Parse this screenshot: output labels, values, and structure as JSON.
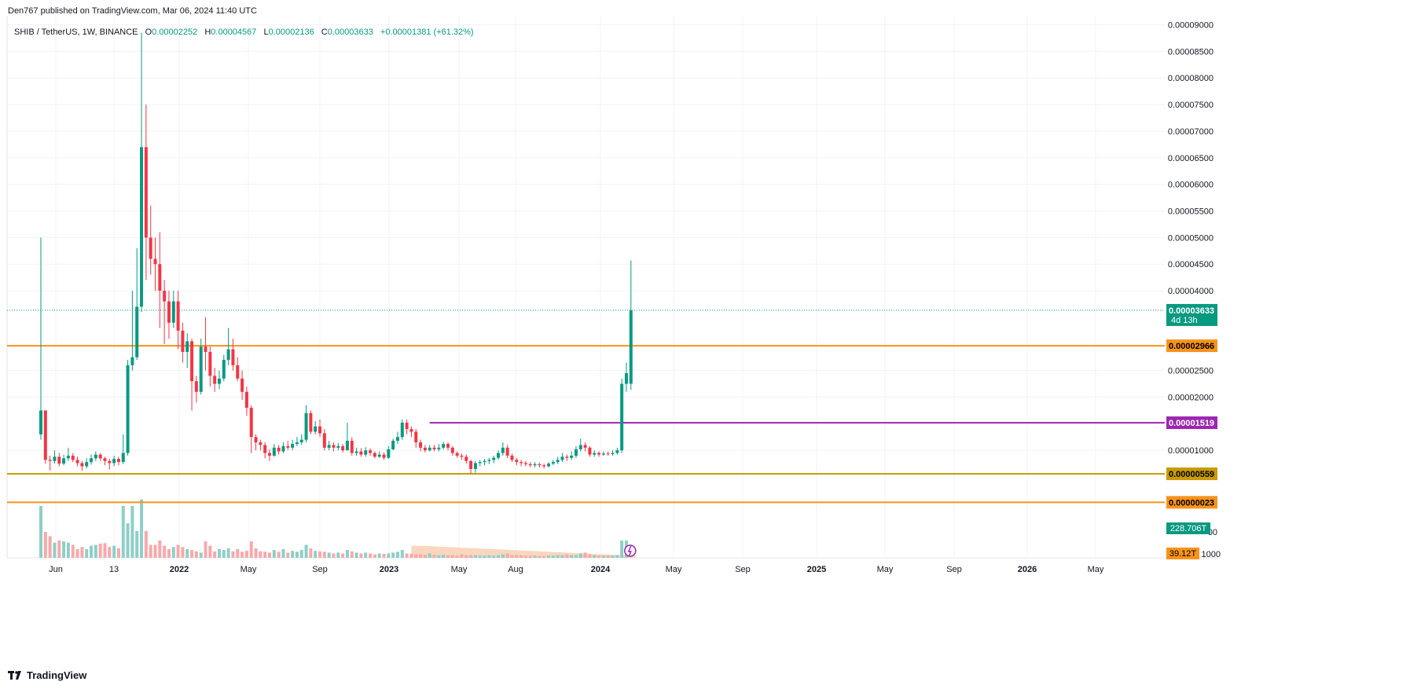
{
  "header": {
    "published": "Den767 published on TradingView.com, Mar 06, 2024 11:40 UTC"
  },
  "legend": {
    "symbol": "SHIB / TetherUS, 1W, BINANCE",
    "o_label": "O",
    "o_value": "0.00002252",
    "h_label": "H",
    "h_value": "0.00004567",
    "l_label": "L",
    "l_value": "0.00002136",
    "c_label": "C",
    "c_value": "0.00003633",
    "change": "+0.00001381 (+61.32%)"
  },
  "footer": {
    "brand": "TradingView"
  },
  "colors": {
    "up": "#089981",
    "down": "#F23645",
    "vol_up": "#8ECFC7",
    "vol_down": "#F7A9A9",
    "orange": "#F7931A",
    "purple": "#9C27B0",
    "grid": "#F0F3FA",
    "axis_text": "#131722",
    "price_tag": "#089981",
    "orange_tag": "#F7931A",
    "gold_tag": "#C79A00",
    "purple_tag": "#9C27B0",
    "vol_area": "#F7C9A9"
  },
  "chart_data": {
    "type": "candlestick",
    "title": "SHIB / TetherUS, 1W, BINANCE",
    "y_axis": {
      "ticks": [
        "0.00009000",
        "0.00008500",
        "0.00008000",
        "0.00007500",
        "0.00007000",
        "0.00006500",
        "0.00006000",
        "0.00005500",
        "0.00005000",
        "0.00004500",
        "0.00004000",
        "0.00002500",
        "0.00002000",
        "0.00001000"
      ],
      "tick_values": [
        9e-05,
        8.5e-05,
        8e-05,
        7.5e-05,
        7e-05,
        6.5e-05,
        6e-05,
        5.5e-05,
        5e-05,
        4.5e-05,
        4e-05,
        2.5e-05,
        2e-05,
        1e-05
      ],
      "ylim": [
        -1.02e-05,
        9.17e-05
      ],
      "volume_suffix_labels": [
        "00",
        "1000"
      ]
    },
    "x_axis": {
      "labels": [
        "Jun",
        "13",
        "2022",
        "May",
        "Sep",
        "2023",
        "May",
        "Aug",
        "2024",
        "May",
        "Sep",
        "2025",
        "May",
        "Sep",
        "2026",
        "May"
      ],
      "bold": [
        false,
        false,
        true,
        false,
        false,
        true,
        false,
        false,
        true,
        false,
        false,
        true,
        false,
        false,
        true,
        false
      ]
    },
    "horizontal_lines": [
      {
        "value": 2.966e-05,
        "label": "0.00002966",
        "color": "orange"
      },
      {
        "value": 5.59e-06,
        "label": "0.00000559",
        "color": "gold"
      },
      {
        "value": 2.3e-07,
        "label": "0.00000023",
        "color": "orange"
      }
    ],
    "segment_line": {
      "value": 1.519e-05,
      "label": "0.00001519",
      "from_week": 85,
      "color": "purple"
    },
    "last_price": {
      "value": 3.633e-05,
      "label": "0.00003633",
      "countdown": "4d 13h"
    },
    "volume_tags": {
      "volume": "228.706T",
      "ma": "39.12T"
    },
    "candles": [
      [
        1.3e-05,
        1.75e-05,
        5e-05,
        1.2e-05
      ],
      [
        1.75e-05,
        8.2e-06,
        1.75e-05,
        7.5e-06
      ],
      [
        8.2e-06,
        8e-06,
        9e-06,
        6.2e-06
      ],
      [
        8e-06,
        8.8e-06,
        1e-05,
        7.5e-06
      ],
      [
        8.8e-06,
        7.5e-06,
        9.5e-06,
        7e-06
      ],
      [
        7.5e-06,
        8.5e-06,
        9.2e-06,
        7.2e-06
      ],
      [
        8.5e-06,
        9e-06,
        1.05e-05,
        8e-06
      ],
      [
        9e-06,
        8.2e-06,
        9.5e-06,
        7.8e-06
      ],
      [
        8.2e-06,
        7.6e-06,
        8.8e-06,
        7e-06
      ],
      [
        7.6e-06,
        7e-06,
        8e-06,
        6.2e-06
      ],
      [
        7e-06,
        7.8e-06,
        8.5e-06,
        6.6e-06
      ],
      [
        7.8e-06,
        8.5e-06,
        9.2e-06,
        7.3e-06
      ],
      [
        8.5e-06,
        9.2e-06,
        9.8e-06,
        8e-06
      ],
      [
        9.2e-06,
        8.5e-06,
        9.5e-06,
        8e-06
      ],
      [
        8.5e-06,
        8e-06,
        8.8e-06,
        7.2e-06
      ],
      [
        8e-06,
        7.6e-06,
        8.4e-06,
        6.4e-06
      ],
      [
        7.6e-06,
        8.4e-06,
        9e-06,
        7e-06
      ],
      [
        8.4e-06,
        7.8e-06,
        8.8e-06,
        7.2e-06
      ],
      [
        7.8e-06,
        9.5e-06,
        1.3e-05,
        7.4e-06
      ],
      [
        9.5e-06,
        2.6e-05,
        2.7e-05,
        9e-06
      ],
      [
        2.6e-05,
        2.75e-05,
        4e-05,
        2.5e-05
      ],
      [
        2.75e-05,
        3.7e-05,
        4.8e-05,
        2.7e-05
      ],
      [
        3.7e-05,
        6.7e-05,
        8.85e-05,
        3.6e-05
      ],
      [
        6.7e-05,
        5e-05,
        7.5e-05,
        4.2e-05
      ],
      [
        5e-05,
        4.6e-05,
        5.6e-05,
        4.3e-05
      ],
      [
        4.6e-05,
        4.5e-05,
        5e-05,
        4e-05
      ],
      [
        4.5e-05,
        4e-05,
        5.1e-05,
        3.3e-05
      ],
      [
        4e-05,
        3.8e-05,
        4.2e-05,
        3e-05
      ],
      [
        3.8e-05,
        3.4e-05,
        4e-05,
        3.1e-05
      ],
      [
        3.4e-05,
        3.8e-05,
        4e-05,
        3.3e-05
      ],
      [
        3.8e-05,
        3.25e-05,
        4e-05,
        2.9e-05
      ],
      [
        3.25e-05,
        2.85e-05,
        3.4e-05,
        2.65e-05
      ],
      [
        2.85e-05,
        3.05e-05,
        3.2e-05,
        2.55e-05
      ],
      [
        3.05e-05,
        2.3e-05,
        3.1e-05,
        1.75e-05
      ],
      [
        2.3e-05,
        2.1e-05,
        2.4e-05,
        1.9e-05
      ],
      [
        2.1e-05,
        2.95e-05,
        3.1e-05,
        2.05e-05
      ],
      [
        2.95e-05,
        2.85e-05,
        3.5e-05,
        2.5e-05
      ],
      [
        2.85e-05,
        2.4e-05,
        2.95e-05,
        2.2e-05
      ],
      [
        2.4e-05,
        2.25e-05,
        2.55e-05,
        2.1e-05
      ],
      [
        2.25e-05,
        2.35e-05,
        2.5e-05,
        2.15e-05
      ],
      [
        2.35e-05,
        2.7e-05,
        2.8e-05,
        2.3e-05
      ],
      [
        2.7e-05,
        2.9e-05,
        3.3e-05,
        2.6e-05
      ],
      [
        2.9e-05,
        2.6e-05,
        3.1e-05,
        2.5e-05
      ],
      [
        2.6e-05,
        2.35e-05,
        2.75e-05,
        2.3e-05
      ],
      [
        2.35e-05,
        2.1e-05,
        2.5e-05,
        1.95e-05
      ],
      [
        2.1e-05,
        1.8e-05,
        2.2e-05,
        1.65e-05
      ],
      [
        1.8e-05,
        1.25e-05,
        1.85e-05,
        9.5e-06
      ],
      [
        1.25e-05,
        1.15e-05,
        1.3e-05,
        1e-05
      ],
      [
        1.15e-05,
        1.1e-05,
        1.2e-05,
        1e-05
      ],
      [
        1.1e-05,
        9.5e-06,
        1.15e-05,
        8.5e-06
      ],
      [
        9.5e-06,
        9e-06,
        1.02e-05,
        8e-06
      ],
      [
        9e-06,
        1.05e-05,
        1.12e-05,
        8.8e-06
      ],
      [
        1.05e-05,
        9.8e-06,
        1.1e-05,
        9.2e-06
      ],
      [
        9.8e-06,
        1.08e-05,
        1.15e-05,
        9.5e-06
      ],
      [
        1.08e-05,
        1.05e-05,
        1.18e-05,
        1e-05
      ],
      [
        1.05e-05,
        1.12e-05,
        1.2e-05,
        1e-05
      ],
      [
        1.12e-05,
        1.15e-05,
        1.25e-05,
        1.08e-05
      ],
      [
        1.15e-05,
        1.2e-05,
        1.3e-05,
        1.1e-05
      ],
      [
        1.2e-05,
        1.7e-05,
        1.85e-05,
        1.15e-05
      ],
      [
        1.7e-05,
        1.35e-05,
        1.75e-05,
        1.3e-05
      ],
      [
        1.35e-05,
        1.45e-05,
        1.55e-05,
        1.3e-05
      ],
      [
        1.45e-05,
        1.32e-05,
        1.58e-05,
        1.25e-05
      ],
      [
        1.32e-05,
        1.05e-05,
        1.4e-05,
        1e-05
      ],
      [
        1.05e-05,
        1.1e-05,
        1.18e-05,
        1e-05
      ],
      [
        1.1e-05,
        1.05e-05,
        1.15e-05,
        9.8e-06
      ],
      [
        1.05e-05,
        1.08e-05,
        1.14e-05,
        1e-05
      ],
      [
        1.08e-05,
        1e-05,
        1.12e-05,
        9.6e-06
      ],
      [
        1e-05,
        1.18e-05,
        1.52e-05,
        1e-05
      ],
      [
        1.18e-05,
        9.5e-06,
        1.25e-05,
        9e-06
      ],
      [
        9.5e-06,
        9.8e-06,
        1.05e-05,
        9e-06
      ],
      [
        9.8e-06,
        9.2e-06,
        1.04e-05,
        8.8e-06
      ],
      [
        9.2e-06,
        1e-05,
        1.06e-05,
        8.8e-06
      ],
      [
        1e-05,
        9.5e-06,
        1.04e-05,
        9e-06
      ],
      [
        9.5e-06,
        8.8e-06,
        9.8e-06,
        8.5e-06
      ],
      [
        8.8e-06,
        9.2e-06,
        9.8e-06,
        8.6e-06
      ],
      [
        9.2e-06,
        8.6e-06,
        9.6e-06,
        8.2e-06
      ],
      [
        8.6e-06,
        1.02e-05,
        1.08e-05,
        8.4e-06
      ],
      [
        1.02e-05,
        1.18e-05,
        1.22e-05,
        1e-05
      ],
      [
        1.18e-05,
        1.25e-05,
        1.35e-05,
        1.12e-05
      ],
      [
        1.25e-05,
        1.52e-05,
        1.58e-05,
        1.2e-05
      ],
      [
        1.52e-05,
        1.4e-05,
        1.58e-05,
        1.3e-05
      ],
      [
        1.4e-05,
        1.35e-05,
        1.45e-05,
        1.25e-05
      ],
      [
        1.35e-05,
        1.15e-05,
        1.4e-05,
        1.05e-05
      ],
      [
        1.15e-05,
        1.05e-05,
        1.2e-05,
        9.8e-06
      ],
      [
        1.05e-05,
        1e-05,
        1.1e-05,
        9.6e-06
      ],
      [
        1e-05,
        1.05e-05,
        1.1e-05,
        9.8e-06
      ],
      [
        1.05e-05,
        1.02e-05,
        1.1e-05,
        9.8e-06
      ],
      [
        1.02e-05,
        1.05e-05,
        1.12e-05,
        9.8e-06
      ],
      [
        1.05e-05,
        1.12e-05,
        1.16e-05,
        1.02e-05
      ],
      [
        1.12e-05,
        1.05e-05,
        1.15e-05,
        1e-05
      ],
      [
        1.05e-05,
        9.5e-06,
        1.08e-05,
        9e-06
      ],
      [
        9.5e-06,
        9e-06,
        9.8e-06,
        8.6e-06
      ],
      [
        9e-06,
        8.8e-06,
        9.4e-06,
        8.2e-06
      ],
      [
        8.8e-06,
        8e-06,
        9.2e-06,
        7.5e-06
      ],
      [
        8e-06,
        6.5e-06,
        8.2e-06,
        5.6e-06
      ],
      [
        6.5e-06,
        7.6e-06,
        8e-06,
        5.8e-06
      ],
      [
        7.6e-06,
        7.8e-06,
        8.2e-06,
        7e-06
      ],
      [
        7.8e-06,
        8e-06,
        8.4e-06,
        7.2e-06
      ],
      [
        8e-06,
        8.2e-06,
        8.6e-06,
        7.4e-06
      ],
      [
        8.2e-06,
        8.6e-06,
        9e-06,
        7.6e-06
      ],
      [
        8.6e-06,
        9.5e-06,
        1e-05,
        8.2e-06
      ],
      [
        9.5e-06,
        1.05e-05,
        1.15e-05,
        9e-06
      ],
      [
        1.05e-05,
        9e-06,
        1.1e-05,
        8.5e-06
      ],
      [
        9e-06,
        8.2e-06,
        9.4e-06,
        7.8e-06
      ],
      [
        8.2e-06,
        7.8e-06,
        8.6e-06,
        7.2e-06
      ],
      [
        7.8e-06,
        7.6e-06,
        8.2e-06,
        7e-06
      ],
      [
        7.6e-06,
        7.4e-06,
        8e-06,
        7e-06
      ],
      [
        7.4e-06,
        7.2e-06,
        7.8e-06,
        6.8e-06
      ],
      [
        7.2e-06,
        7.4e-06,
        7.8e-06,
        6.8e-06
      ],
      [
        7.4e-06,
        7.2e-06,
        7.7e-06,
        6.8e-06
      ],
      [
        7.2e-06,
        7e-06,
        7.5e-06,
        6.6e-06
      ],
      [
        7e-06,
        7.5e-06,
        7.8e-06,
        6.8e-06
      ],
      [
        7.5e-06,
        7.8e-06,
        8.2e-06,
        7.2e-06
      ],
      [
        7.8e-06,
        8.2e-06,
        8.8e-06,
        7.4e-06
      ],
      [
        8.2e-06,
        8.8e-06,
        9.5e-06,
        7.8e-06
      ],
      [
        8.8e-06,
        8.6e-06,
        9.2e-06,
        8e-06
      ],
      [
        8.6e-06,
        9e-06,
        9.8e-06,
        8.2e-06
      ],
      [
        9e-06,
        1.02e-05,
        1.08e-05,
        8.6e-06
      ],
      [
        1.02e-05,
        1.1e-05,
        1.22e-05,
        9.8e-06
      ],
      [
        1.1e-05,
        1.05e-05,
        1.15e-05,
        9.8e-06
      ],
      [
        1.05e-05,
        9.2e-06,
        1.08e-05,
        8.8e-06
      ],
      [
        9.2e-06,
        9.5e-06,
        1e-05,
        8.8e-06
      ],
      [
        9.5e-06,
        9.2e-06,
        9.8e-06,
        8.8e-06
      ],
      [
        9.2e-06,
        9.4e-06,
        9.8e-06,
        9e-06
      ],
      [
        9.4e-06,
        9.3e-06,
        9.8e-06,
        9e-06
      ],
      [
        9.3e-06,
        9.5e-06,
        1e-05,
        9e-06
      ],
      [
        9.5e-06,
        1e-05,
        1.05e-05,
        9.2e-06
      ],
      [
        1e-05,
        2.25e-05,
        2.35e-05,
        9.5e-06
      ],
      [
        2.25e-05,
        2.45e-05,
        2.65e-05,
        2.1e-05
      ],
      [
        2.252e-05,
        3.633e-05,
        4.567e-05,
        2.136e-05
      ]
    ],
    "volumes": [
      120,
      60,
      50,
      35,
      40,
      38,
      35,
      30,
      20,
      25,
      20,
      28,
      30,
      33,
      34,
      25,
      28,
      22,
      120,
      80,
      120,
      62,
      135,
      62,
      30,
      30,
      40,
      28,
      20,
      25,
      30,
      25,
      20,
      18,
      15,
      12,
      38,
      28,
      15,
      20,
      18,
      22,
      15,
      20,
      14,
      16,
      38,
      22,
      15,
      14,
      12,
      18,
      14,
      20,
      12,
      16,
      14,
      18,
      30,
      22,
      16,
      15,
      14,
      12,
      10,
      12,
      10,
      18,
      15,
      12,
      10,
      12,
      10,
      8,
      10,
      9,
      10,
      12,
      14,
      18,
      10,
      9,
      8,
      8,
      7,
      10,
      7,
      6,
      7,
      6,
      6,
      5,
      8,
      6,
      6,
      6,
      5,
      5,
      6,
      5,
      6,
      8,
      10,
      6,
      7,
      6,
      5,
      5,
      5,
      4,
      4,
      5,
      5,
      6,
      6,
      8,
      6,
      6,
      10,
      12,
      8,
      6,
      5,
      5,
      6,
      5,
      6,
      40,
      40,
      0
    ],
    "volume_ma_start": 81,
    "volume_ma": [
      28,
      28,
      27.5,
      27.5,
      27,
      26.5,
      26,
      25.5,
      25,
      24.5,
      24,
      23.5,
      23,
      22.5,
      22,
      21.5,
      21,
      20.5,
      20,
      19.5,
      19,
      18.5,
      18,
      17.5,
      17,
      16.5,
      16,
      15.5,
      15,
      14.5,
      14,
      13.5,
      13,
      12.5,
      12,
      11.5,
      11,
      10.5,
      10,
      9.5,
      9,
      8.5,
      8,
      7.5,
      7,
      6.8,
      6.6,
      6.4,
      6.2,
      6
    ]
  }
}
